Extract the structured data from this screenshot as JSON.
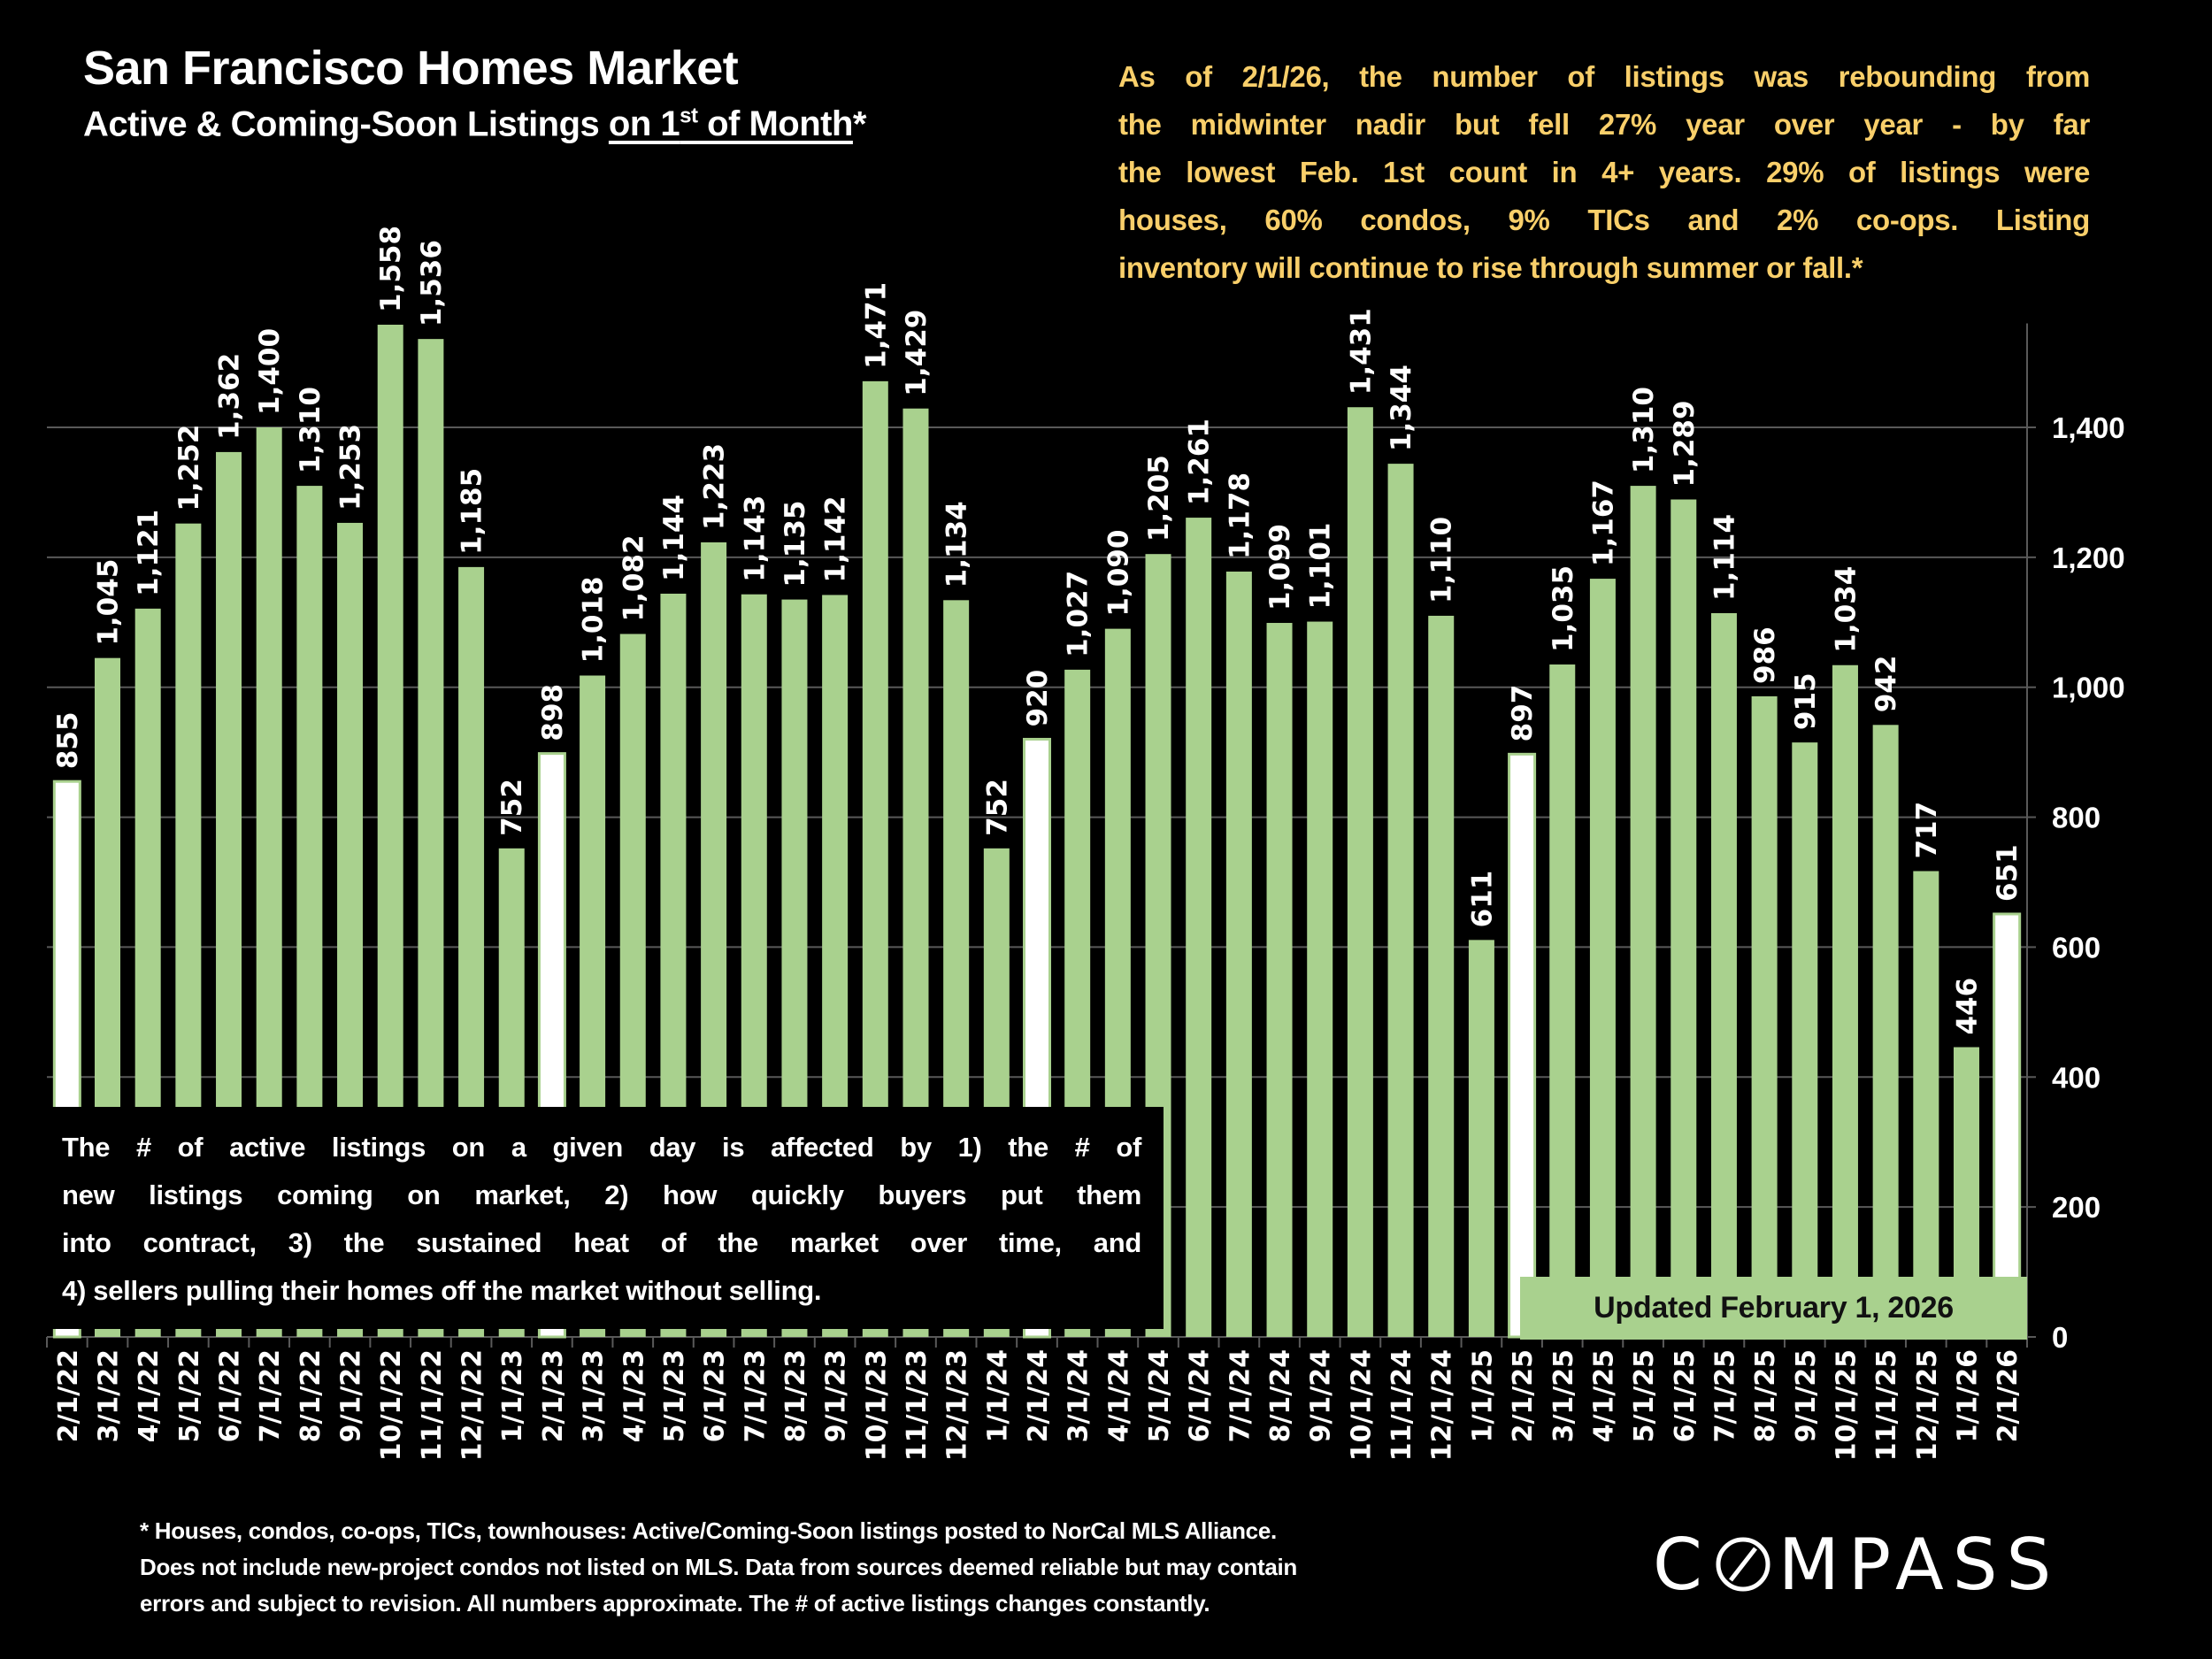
{
  "header": {
    "title": "San Francisco Homes Market",
    "subtitle_pre": "Active & Coming-Soon Listings ",
    "subtitle_underlined_1": "on 1",
    "subtitle_sup": "st",
    "subtitle_underlined_2": " of Month",
    "subtitle_post": "*"
  },
  "commentary": {
    "lines": [
      "As of 2/1/26, the number of listings was rebounding from",
      "the midwinter nadir but fell 27% year over year - by far",
      "the lowest Feb. 1st count in 4+ years. 29% of listings were",
      "houses, 60% condos, 9% TICs and 2% co-ops. Listing",
      "inventory will continue to rise through summer or fall.*"
    ],
    "color": "#f9cf6a"
  },
  "explainer": {
    "lines": [
      "The # of active listings on a given day is affected by 1) the # of",
      "new listings coming on market, 2) how quickly buyers put them",
      "into contract, 3) the sustained heat of the market over time, and",
      "4) sellers pulling their homes off the market without selling."
    ]
  },
  "updated_label": "Updated February 1, 2026",
  "footnote": {
    "lines": [
      "* Houses, condos, co-ops, TICs, townhouses: Active/Coming-Soon listings posted to NorCal MLS Alliance.",
      "Does not include new-project condos not listed on MLS. Data from sources deemed reliable but may contain",
      "errors and subject to revision. All numbers approximate. The # of active listings changes constantly."
    ]
  },
  "logo": {
    "text": "COMPASS",
    "pre": "C",
    "post": "MPASS"
  },
  "colors": {
    "bar": "#a9d18e",
    "highlight_bar": "#ffffff",
    "grid": "#595959",
    "background": "#000000"
  },
  "chart_data": {
    "type": "bar",
    "title": "San Francisco Homes Market",
    "xlabel": "",
    "ylabel": "",
    "ylim": [
      0,
      1560
    ],
    "yticks": [
      0,
      200,
      400,
      600,
      800,
      1000,
      1200,
      1400
    ],
    "ytick_labels": [
      "0",
      "200",
      "400",
      "600",
      "800",
      "1,000",
      "1,200",
      "1,400"
    ],
    "y_axis_side": "right",
    "grid": true,
    "categories": [
      "2/1/22",
      "3/1/22",
      "4/1/22",
      "5/1/22",
      "6/1/22",
      "7/1/22",
      "8/1/22",
      "9/1/22",
      "10/1/22",
      "11/1/22",
      "12/1/22",
      "1/1/23",
      "2/1/23",
      "3/1/23",
      "4/1/23",
      "5/1/23",
      "6/1/23",
      "7/1/23",
      "8/1/23",
      "9/1/23",
      "10/1/23",
      "11/1/23",
      "12/1/23",
      "1/1/24",
      "2/1/24",
      "3/1/24",
      "4/1/24",
      "5/1/24",
      "6/1/24",
      "7/1/24",
      "8/1/24",
      "9/1/24",
      "10/1/24",
      "11/1/24",
      "12/1/24",
      "1/1/25",
      "2/1/25",
      "3/1/25",
      "4/1/25",
      "5/1/25",
      "6/1/25",
      "7/1/25",
      "8/1/25",
      "9/1/25",
      "10/1/25",
      "11/1/25",
      "12/1/25",
      "1/1/26",
      "2/1/26"
    ],
    "values": [
      855,
      1045,
      1121,
      1252,
      1362,
      1400,
      1310,
      1253,
      1558,
      1536,
      1185,
      752,
      898,
      1018,
      1082,
      1144,
      1223,
      1143,
      1135,
      1142,
      1471,
      1429,
      1134,
      752,
      920,
      1027,
      1090,
      1205,
      1261,
      1178,
      1099,
      1101,
      1431,
      1344,
      1110,
      611,
      897,
      1035,
      1167,
      1310,
      1289,
      1114,
      986,
      915,
      1034,
      942,
      717,
      446,
      651
    ],
    "data_labels": [
      "855",
      "1,045",
      "1,121",
      "1,252",
      "1,362",
      "1,400",
      "1,310",
      "1,253",
      "1,558",
      "1,536",
      "1,185",
      "752",
      "898",
      "1,018",
      "1,082",
      "1,144",
      "1,223",
      "1,143",
      "1,135",
      "1,142",
      "1,471",
      "1,429",
      "1,134",
      "752",
      "920",
      "1,027",
      "1,090",
      "1,205",
      "1,261",
      "1,178",
      "1,099",
      "1,101",
      "1,431",
      "1,344",
      "1,110",
      "611",
      "897",
      "1,035",
      "1,167",
      "1,310",
      "1,289",
      "1,114",
      "986",
      "915",
      "1,034",
      "942",
      "717",
      "446",
      "651"
    ],
    "highlighted": [
      "2/1/22",
      "2/1/23",
      "2/1/24",
      "2/1/25",
      "2/1/26"
    ]
  }
}
